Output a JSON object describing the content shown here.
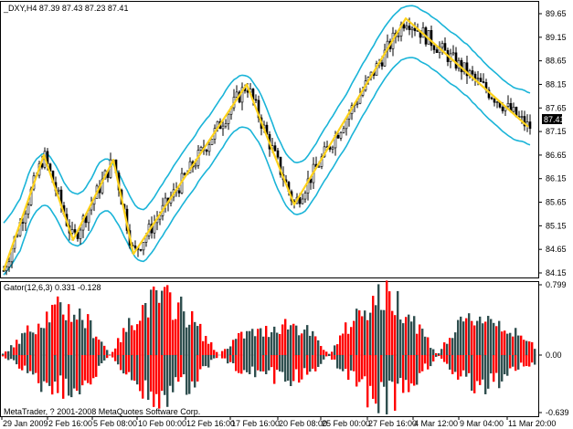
{
  "main_panel": {
    "header": "_DXY,H4  87.39 87.43 87.23 87.41",
    "current_price_tag": "87.41",
    "y_axis": {
      "ticks": [
        "89.65",
        "89.15",
        "88.65",
        "88.15",
        "87.65",
        "87.15",
        "86.65",
        "86.15",
        "85.65",
        "85.15",
        "84.65",
        "84.15"
      ],
      "range": [
        84.15,
        89.65
      ]
    }
  },
  "indicator_panel": {
    "header": "Gator(12,6,3) 0.331 -0.128",
    "y_axis": {
      "ticks": [
        "0.799",
        "0.00",
        "-0.639"
      ],
      "range": [
        -0.639,
        0.799
      ]
    },
    "copyright": "MetaTrader, ? 2001-2008 MetaQuotes Software Corp."
  },
  "x_axis": {
    "labels": [
      "29 Jan 2009",
      "2 Feb 16:00",
      "5 Feb 08:00",
      "10 Feb 00:00",
      "12 Feb 16:00",
      "17 Feb 16:00",
      "20 Feb 08:00",
      "25 Feb 00:00",
      "27 Feb 16:00",
      "4 Mar 12:00",
      "9 Mar 04:00",
      "11 Mar 20:00"
    ]
  },
  "colors": {
    "bullish_bar": "#ff0000",
    "bearish_bar": "#2f4f4f",
    "band_line": "#1ab4d8",
    "zigzag_line": "#ffd21a",
    "candle": "#000000",
    "background": "#ffffff"
  },
  "chart_data": {
    "type": "candlestick",
    "series_overlays": [
      "upper band",
      "lower band",
      "zigzag"
    ],
    "zigzag_points": [
      {
        "x": "29 Jan 2009",
        "y": 84.15
      },
      {
        "x": "30 Jan",
        "y": 86.65
      },
      {
        "x": "2 Feb 16:00",
        "y": 84.85
      },
      {
        "x": "4 Feb",
        "y": 86.55
      },
      {
        "x": "5 Feb 08:00",
        "y": 84.55
      },
      {
        "x": "17 Feb 16:00",
        "y": 88.15
      },
      {
        "x": "18 Feb",
        "y": 87.05
      },
      {
        "x": "20 Feb 08:00",
        "y": 85.65
      },
      {
        "x": "4 Mar 12:00",
        "y": 89.55
      },
      {
        "x": "11 Mar 20:00",
        "y": 87.25
      }
    ]
  }
}
